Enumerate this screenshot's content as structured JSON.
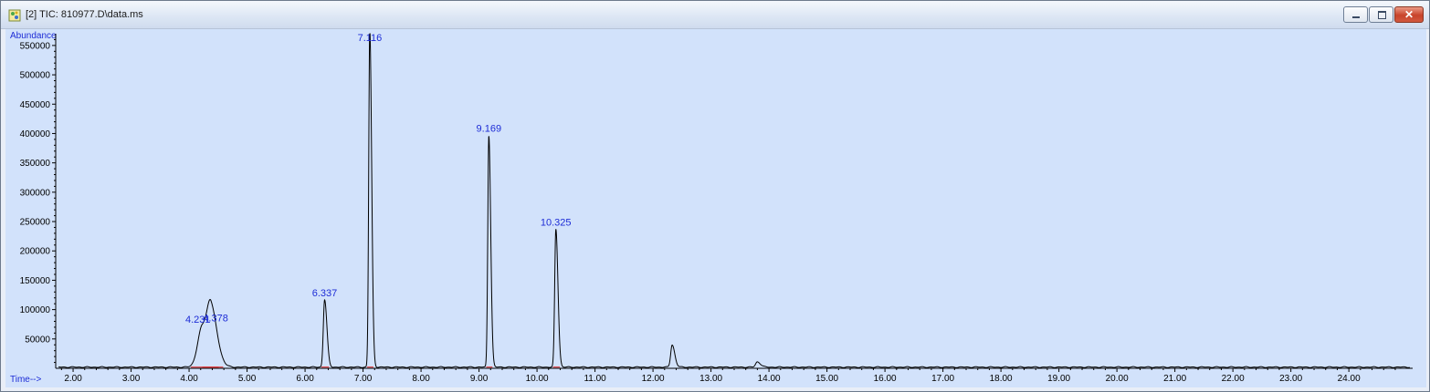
{
  "window": {
    "title": "[2] TIC: 810977.D\\data.ms",
    "icon": "chromatogram-app-icon",
    "close_glyph": "✕"
  },
  "chart_data": {
    "type": "line",
    "ylabel": "Abundance",
    "xlabel": "Time-->",
    "xlim": [
      1.7,
      25.1
    ],
    "ylim": [
      0,
      570000
    ],
    "y_ticks": [
      50000,
      100000,
      150000,
      200000,
      250000,
      300000,
      350000,
      400000,
      450000,
      500000,
      550000
    ],
    "y_tick_labels": [
      "50000",
      "100000",
      "150000",
      "200000",
      "250000",
      "300000",
      "350000",
      "400000",
      "450000",
      "500000",
      "550000"
    ],
    "x_ticks": [
      2,
      3,
      4,
      5,
      6,
      7,
      8,
      9,
      10,
      11,
      12,
      13,
      14,
      15,
      16,
      17,
      18,
      19,
      20,
      21,
      22,
      23,
      24
    ],
    "x_tick_labels": [
      "2.00",
      "3.00",
      "4.00",
      "5.00",
      "6.00",
      "7.00",
      "8.00",
      "9.00",
      "10.00",
      "11.00",
      "12.00",
      "13.00",
      "14.00",
      "15.00",
      "16.00",
      "17.00",
      "18.00",
      "19.00",
      "20.00",
      "21.00",
      "22.00",
      "23.00",
      "24.00"
    ],
    "baseline": 2000,
    "peaks": [
      {
        "rt": 4.231,
        "height": 70000,
        "width": 0.08,
        "label": "4.231"
      },
      {
        "rt": 4.378,
        "height": 72000,
        "width": 0.06,
        "label": "4.378"
      },
      {
        "rt": 6.337,
        "height": 115000,
        "width": 0.022,
        "label": "6.337"
      },
      {
        "rt": 7.116,
        "height": 575000,
        "width": 0.018,
        "label": "7.116"
      },
      {
        "rt": 9.169,
        "height": 395000,
        "width": 0.018,
        "label": "9.169"
      },
      {
        "rt": 10.325,
        "height": 235000,
        "width": 0.02,
        "label": "10.325"
      },
      {
        "rt": 12.33,
        "height": 38000,
        "width": 0.025,
        "label": ""
      },
      {
        "rt": 13.8,
        "height": 9000,
        "width": 0.03,
        "label": ""
      }
    ],
    "colors": {
      "background": "#d2e2fb",
      "trace": "#000000",
      "labels": "#1d2cd6",
      "integration": "#e02020"
    }
  }
}
